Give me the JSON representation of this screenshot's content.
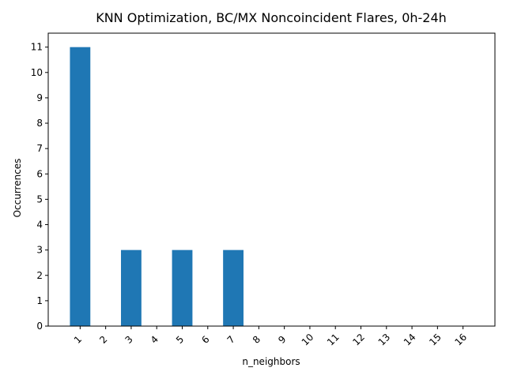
{
  "chart_data": {
    "type": "bar",
    "title": "KNN Optimization, BC/MX Noncoincident Flares, 0h-24h",
    "xlabel": "n_neighbors",
    "ylabel": "Occurrences",
    "categories": [
      "1",
      "2",
      "3",
      "4",
      "5",
      "6",
      "7",
      "8",
      "9",
      "10",
      "11",
      "12",
      "13",
      "14",
      "15",
      "16"
    ],
    "values": [
      11,
      0,
      3,
      0,
      3,
      0,
      3,
      0,
      0,
      0,
      0,
      0,
      0,
      0,
      0,
      0
    ],
    "ylim": [
      0,
      11.55
    ],
    "yticks": [
      "0",
      "1",
      "2",
      "3",
      "4",
      "5",
      "6",
      "7",
      "8",
      "9",
      "10",
      "11"
    ],
    "bar_color": "#1f77b4",
    "grid": false
  }
}
